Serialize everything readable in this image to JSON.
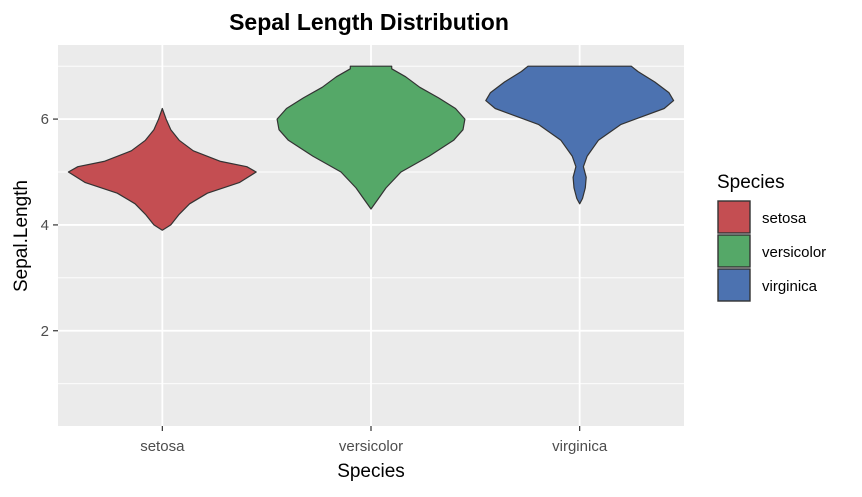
{
  "chart_data": {
    "type": "violin",
    "title": "Sepal Length Distribution",
    "xlabel": "Species",
    "ylabel": "Sepal.Length",
    "categories": [
      "setosa",
      "versicolor",
      "virginica"
    ],
    "ylim": [
      0.2,
      7.4
    ],
    "yticks": [
      2,
      4,
      6
    ],
    "grid": true,
    "legend": {
      "title": "Species",
      "position": "right",
      "entries": [
        "setosa",
        "versicolor",
        "virginica"
      ]
    },
    "colors": {
      "setosa": "#c44e52",
      "versicolor": "#55a868",
      "virginica": "#4c72b0",
      "outline": "#333333",
      "panel": "#ebebeb",
      "grid": "#ffffff"
    },
    "series": [
      {
        "name": "setosa",
        "min": 3.9,
        "max": 6.2,
        "density": [
          [
            3.9,
            0.0
          ],
          [
            4.0,
            0.09
          ],
          [
            4.2,
            0.18
          ],
          [
            4.4,
            0.29
          ],
          [
            4.6,
            0.48
          ],
          [
            4.8,
            0.82
          ],
          [
            5.0,
            1.0
          ],
          [
            5.1,
            0.9
          ],
          [
            5.2,
            0.62
          ],
          [
            5.4,
            0.33
          ],
          [
            5.6,
            0.18
          ],
          [
            5.8,
            0.09
          ],
          [
            6.0,
            0.04
          ],
          [
            6.2,
            0.0
          ]
        ]
      },
      {
        "name": "versicolor",
        "min": 4.3,
        "max": 7.0,
        "density": [
          [
            4.3,
            0.0
          ],
          [
            4.5,
            0.08
          ],
          [
            4.7,
            0.16
          ],
          [
            5.0,
            0.32
          ],
          [
            5.3,
            0.62
          ],
          [
            5.6,
            0.88
          ],
          [
            5.8,
            0.98
          ],
          [
            6.0,
            1.0
          ],
          [
            6.2,
            0.9
          ],
          [
            6.4,
            0.72
          ],
          [
            6.6,
            0.52
          ],
          [
            6.8,
            0.37
          ],
          [
            6.95,
            0.22
          ],
          [
            7.0,
            0.22
          ]
        ]
      },
      {
        "name": "virginica",
        "min": 4.4,
        "max": 7.0,
        "density": [
          [
            4.4,
            0.0
          ],
          [
            4.5,
            0.03
          ],
          [
            4.7,
            0.06
          ],
          [
            4.9,
            0.07
          ],
          [
            5.1,
            0.04
          ],
          [
            5.3,
            0.08
          ],
          [
            5.6,
            0.2
          ],
          [
            5.9,
            0.44
          ],
          [
            6.2,
            0.9
          ],
          [
            6.35,
            1.0
          ],
          [
            6.5,
            0.95
          ],
          [
            6.7,
            0.8
          ],
          [
            6.9,
            0.62
          ],
          [
            7.0,
            0.55
          ]
        ]
      }
    ]
  }
}
